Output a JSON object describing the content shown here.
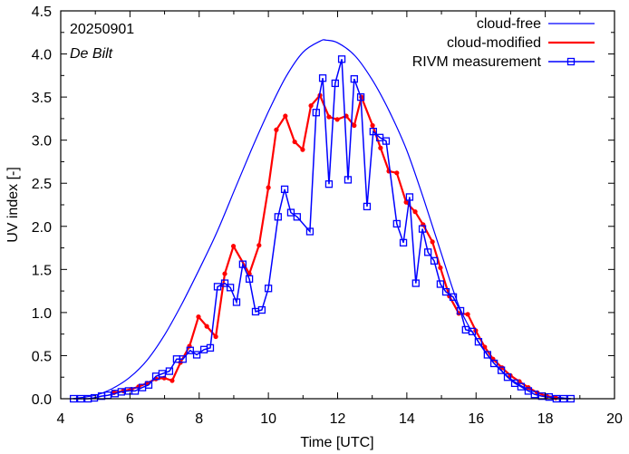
{
  "chart_data": {
    "type": "line",
    "title": "",
    "xlabel": "Time  [UTC]",
    "ylabel": "UV index  [-]",
    "xlim": [
      4,
      20
    ],
    "ylim": [
      0,
      4.5
    ],
    "xticks": [
      4,
      6,
      8,
      10,
      12,
      14,
      16,
      18,
      20
    ],
    "xtick_labels": [
      "4",
      "6",
      "8",
      "10",
      "12",
      "14",
      "16",
      "18",
      "20"
    ],
    "yticks": [
      0,
      0.5,
      1,
      1.5,
      2,
      2.5,
      3,
      3.5,
      4,
      4.5
    ],
    "ytick_labels": [
      "0.0",
      "0.5",
      "1.0",
      "1.5",
      "2.0",
      "2.5",
      "3.0",
      "3.5",
      "4.0",
      "4.5"
    ],
    "grid": false,
    "legend_position": "top-right",
    "annotations": {
      "date": "20250901",
      "location": "De Bilt"
    },
    "colors": {
      "cloud_free": "#0000ff",
      "cloud_modified": "#ff0000",
      "measurement": "#0000ff"
    },
    "series": [
      {
        "name": "cloud-free",
        "style": "line",
        "x": [
          4.3,
          5.0,
          5.5,
          6.0,
          6.5,
          7.0,
          7.5,
          8.0,
          8.5,
          9.0,
          9.5,
          10.0,
          10.5,
          11.0,
          11.5,
          11.67,
          12.0,
          12.5,
          13.0,
          13.5,
          14.0,
          14.5,
          15.0,
          15.5,
          16.0,
          16.5,
          17.0,
          17.5,
          18.0,
          18.5,
          18.8
        ],
        "y": [
          0.0,
          0.04,
          0.12,
          0.25,
          0.45,
          0.74,
          1.1,
          1.5,
          1.92,
          2.4,
          2.88,
          3.33,
          3.73,
          4.02,
          4.15,
          4.16,
          4.13,
          3.98,
          3.7,
          3.33,
          2.88,
          2.3,
          1.68,
          1.08,
          0.7,
          0.42,
          0.23,
          0.11,
          0.04,
          0.01,
          0.0
        ]
      },
      {
        "name": "cloud-modified",
        "style": "line-dot",
        "x": [
          5.54,
          5.81,
          6.04,
          6.25,
          6.49,
          6.75,
          6.99,
          7.22,
          7.46,
          7.72,
          7.98,
          8.22,
          8.48,
          8.74,
          8.99,
          9.45,
          9.73,
          10.0,
          10.23,
          10.49,
          10.76,
          10.99,
          11.23,
          11.49,
          11.75,
          11.99,
          12.25,
          12.48,
          12.69,
          13.01,
          13.24,
          13.48,
          13.71,
          13.98,
          14.24,
          14.47,
          14.74,
          14.97,
          15.23,
          15.5,
          15.76,
          15.99,
          16.25,
          16.49,
          16.75,
          16.99,
          17.25,
          17.51,
          17.77,
          18.04,
          18.3
        ],
        "y": [
          0.07,
          0.09,
          0.11,
          0.14,
          0.18,
          0.23,
          0.24,
          0.21,
          0.42,
          0.61,
          0.95,
          0.84,
          0.72,
          1.45,
          1.77,
          1.45,
          1.78,
          2.45,
          3.12,
          3.28,
          2.98,
          2.89,
          3.4,
          3.52,
          3.27,
          3.24,
          3.28,
          3.17,
          3.5,
          3.17,
          2.91,
          2.64,
          2.62,
          2.28,
          2.17,
          2.02,
          1.82,
          1.52,
          1.19,
          0.99,
          0.98,
          0.79,
          0.6,
          0.46,
          0.36,
          0.27,
          0.2,
          0.13,
          0.07,
          0.03,
          0.01
        ]
      },
      {
        "name": "RIVM measurement",
        "style": "line-square",
        "x": [
          4.37,
          4.58,
          4.79,
          4.97,
          5.18,
          5.36,
          5.57,
          5.75,
          5.96,
          6.15,
          6.36,
          6.54,
          6.75,
          6.93,
          7.14,
          7.35,
          7.53,
          7.74,
          7.93,
          8.14,
          8.32,
          8.53,
          8.74,
          8.9,
          9.08,
          9.26,
          9.45,
          9.63,
          9.81,
          10.0,
          10.28,
          10.47,
          10.65,
          10.83,
          11.2,
          11.38,
          11.57,
          11.75,
          11.93,
          12.12,
          12.3,
          12.48,
          12.67,
          12.85,
          13.03,
          13.22,
          13.4,
          13.71,
          13.9,
          14.08,
          14.26,
          14.45,
          14.61,
          14.79,
          14.97,
          15.13,
          15.34,
          15.55,
          15.7,
          15.89,
          16.07,
          16.33,
          16.52,
          16.73,
          16.91,
          17.12,
          17.3,
          17.51,
          17.69,
          17.9,
          18.11,
          18.32,
          18.53,
          18.74
        ],
        "y": [
          0.0,
          0.0,
          0.0,
          0.01,
          0.03,
          0.04,
          0.06,
          0.08,
          0.09,
          0.09,
          0.13,
          0.16,
          0.26,
          0.29,
          0.32,
          0.46,
          0.46,
          0.56,
          0.51,
          0.57,
          0.59,
          1.3,
          1.34,
          1.29,
          1.12,
          1.56,
          1.39,
          1.01,
          1.03,
          1.28,
          2.11,
          2.43,
          2.16,
          2.11,
          1.94,
          3.32,
          3.72,
          2.49,
          3.66,
          3.94,
          2.54,
          3.71,
          3.5,
          2.23,
          3.1,
          3.03,
          2.99,
          2.03,
          1.81,
          2.34,
          1.34,
          1.97,
          1.7,
          1.6,
          1.33,
          1.24,
          1.18,
          1.02,
          0.8,
          0.78,
          0.66,
          0.51,
          0.41,
          0.33,
          0.25,
          0.18,
          0.14,
          0.09,
          0.05,
          0.03,
          0.02,
          0.0,
          0.0,
          0.0
        ]
      }
    ]
  }
}
